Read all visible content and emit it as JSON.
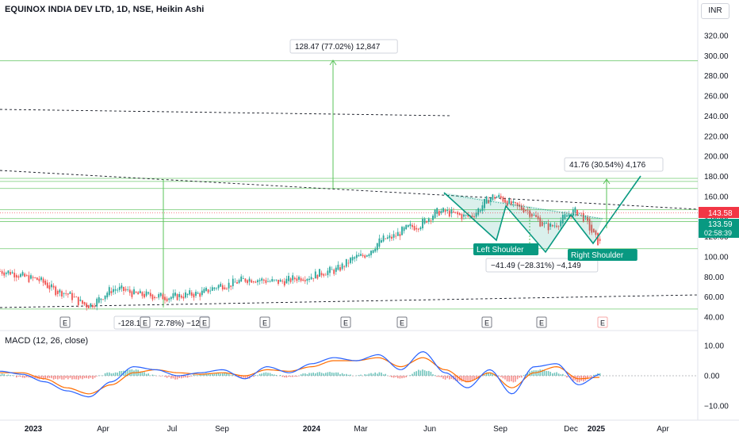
{
  "header": {
    "title": "EQUINOX INDIA DEV LTD, 1D, NSE, Heikin Ashi",
    "currency": "INR"
  },
  "macd_label": "MACD (12, 26, close)",
  "colors": {
    "up": "#26a69a",
    "down": "#ef5350",
    "macd": "#2962ff",
    "signal": "#ff6d00",
    "pattern": "#089981",
    "level": "#5ac35a"
  },
  "chart_data": [
    {
      "type": "candlestick",
      "title": "EQUINOX INDIA DEV LTD, 1D, NSE, Heikin Ashi",
      "xlabel": "",
      "ylabel": "",
      "x_ticks": [
        "2023",
        "Apr",
        "Jul",
        "Sep",
        "2024",
        "Mar",
        "Jun",
        "Sep",
        "Dec",
        "2025",
        "Apr"
      ],
      "y_ticks": [
        "320.00",
        "300.00",
        "280.00",
        "260.00",
        "240.00",
        "220.00",
        "200.00",
        "180.00",
        "160.00",
        "140.00",
        "120.00",
        "100.00",
        "80.00",
        "60.00",
        "40.00"
      ],
      "ylim": [
        40,
        325
      ],
      "grid": false,
      "price_series": {
        "dates": [
          "2022-11",
          "2022-12",
          "2023-01",
          "2023-02",
          "2023-03",
          "2023-04",
          "2023-05",
          "2023-06",
          "2023-07",
          "2023-08",
          "2023-09",
          "2023-10",
          "2023-11",
          "2023-12",
          "2024-01",
          "2024-02",
          "2024-03",
          "2024-04",
          "2024-05",
          "2024-06",
          "2024-07",
          "2024-08",
          "2024-09",
          "2024-10",
          "2024-11",
          "2024-12",
          "2025-01"
        ],
        "values": [
          90,
          85,
          78,
          65,
          52,
          68,
          62,
          60,
          63,
          72,
          78,
          75,
          80,
          86,
          100,
          118,
          130,
          145,
          140,
          160,
          148,
          130,
          145,
          112,
          140,
          125,
          135
        ]
      },
      "horizontal_levels": [
        295,
        178,
        175,
        168,
        147,
        138,
        135,
        108,
        48
      ],
      "trendlines": [
        {
          "from": [
            "2022-11",
            170
          ],
          "to": [
            "2025-05",
            143
          ],
          "style": "dashed"
        },
        {
          "from": [
            "2022-11",
            48
          ],
          "to": [
            "2025-05",
            63
          ],
          "style": "dashed"
        },
        {
          "from": [
            "2022-11",
            250
          ],
          "to": [
            "2024-04",
            240
          ],
          "style": "dashed"
        }
      ],
      "measurements": [
        {
          "label": "128.47 (77.02%) 12,847",
          "from": 167,
          "to": 295
        },
        {
          "label": "-128.1",
          "extra": "72.78%) −12,8",
          "from": 176,
          "to": 48
        },
        {
          "label": "41.76 (30.54%) 4,176",
          "from": 137,
          "to": 178
        },
        {
          "label": "−41.49 (−28.31%) −4,149",
          "from": 147,
          "to": 105
        }
      ],
      "pattern": {
        "name": "head-and-shoulders",
        "labels": [
          "Left Shoulder",
          "Right Shoulder"
        ]
      },
      "price_labels": [
        {
          "value": "143.58",
          "color": "#f23645"
        },
        {
          "value": "133.59",
          "sub": "02:58:39",
          "color": "#089981"
        }
      ],
      "earnings_markers": [
        "E",
        "E",
        "E",
        "E",
        "E",
        "E",
        "E",
        "E",
        "E"
      ]
    },
    {
      "type": "line",
      "title": "MACD (12, 26, close)",
      "y_ticks": [
        "10.00",
        "0.00",
        "−10.00"
      ],
      "ylim": [
        -13,
        13
      ],
      "series": [
        {
          "name": "MACD",
          "values": [
            1.5,
            0.5,
            -2,
            -5,
            -7,
            -2,
            3,
            2,
            0,
            1,
            2,
            -1,
            3,
            1,
            4,
            6,
            5,
            7,
            2,
            8,
            1,
            -4,
            2,
            -6,
            3,
            4,
            -3,
            0.5
          ]
        },
        {
          "name": "Signal",
          "values": [
            1,
            1,
            -1,
            -4,
            -6,
            -3,
            1,
            2,
            1,
            0.5,
            1,
            0,
            2,
            1.5,
            3,
            5,
            5,
            6,
            3,
            6,
            2,
            -2,
            1,
            -4,
            1,
            3,
            -1,
            -0.5
          ]
        }
      ]
    }
  ]
}
